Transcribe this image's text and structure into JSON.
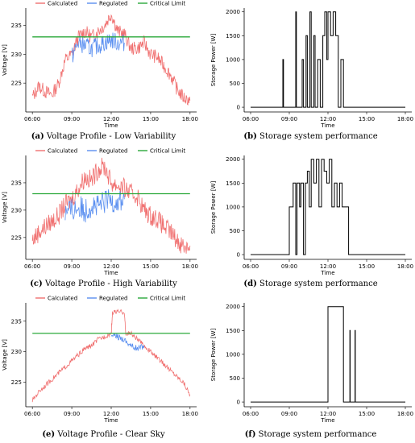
{
  "chart_data": [
    {
      "id": "a",
      "type": "line",
      "caption_letter": "(a)",
      "caption_text": "Voltage Profile - Low Variability",
      "xlabel": "Time",
      "ylabel": "Voltage [V]",
      "xlim": [
        5.5,
        18.5
      ],
      "ylim": [
        220,
        238
      ],
      "xticks": [
        6,
        9,
        12,
        15,
        18
      ],
      "xtick_labels": [
        "06:00",
        "09:00",
        "12:00",
        "15:00",
        "18:00"
      ],
      "yticks": [
        225,
        230,
        235
      ],
      "legend": "top",
      "critical_limit": 233,
      "colors": {
        "Calculated": "#f07070",
        "Regulated": "#5a8ff0",
        "Critical Limit": "#2aa83a"
      },
      "series": [
        {
          "name": "Calculated",
          "x": [
            6.0,
            6.5,
            7.0,
            7.5,
            8.0,
            8.5,
            9.0,
            9.5,
            10.0,
            10.5,
            11.0,
            11.5,
            12.0,
            12.5,
            13.0,
            13.5,
            14.0,
            14.5,
            15.0,
            15.5,
            16.0,
            16.5,
            17.0,
            17.5,
            18.0
          ],
          "y": [
            222.5,
            224.5,
            223.5,
            223,
            225,
            229,
            230,
            233,
            234,
            233,
            234,
            235,
            237,
            234,
            233.5,
            231,
            231,
            232,
            230,
            229.5,
            228,
            226.5,
            224,
            222.5,
            222
          ]
        },
        {
          "name": "Regulated",
          "x": [
            9.0,
            9.5,
            10.0,
            10.5,
            11.0,
            11.5,
            12.0,
            12.5,
            13.0
          ],
          "y": [
            229.5,
            232,
            231.5,
            231,
            231.5,
            232,
            232.5,
            232,
            232
          ]
        },
        {
          "name": "Critical Limit",
          "x": [
            6.0,
            18.0
          ],
          "y": [
            233,
            233
          ]
        }
      ]
    },
    {
      "id": "b",
      "type": "line",
      "caption_letter": "(b)",
      "caption_text": "Storage system performance",
      "xlabel": "Time",
      "ylabel": "Storage Power [W]",
      "xlim": [
        5.5,
        18.5
      ],
      "ylim": [
        -100,
        2080
      ],
      "xticks": [
        6,
        9,
        12,
        15,
        18
      ],
      "xtick_labels": [
        "06:00",
        "09:00",
        "12:00",
        "15:00",
        "18:00"
      ],
      "yticks": [
        0,
        500,
        1000,
        1500,
        2000
      ],
      "series": [
        {
          "name": "Storage",
          "x": [
            6.0,
            8.5,
            8.5,
            8.55,
            8.55,
            9.5,
            9.5,
            9.55,
            9.55,
            10.0,
            10.0,
            10.1,
            10.1,
            10.3,
            10.3,
            10.4,
            10.4,
            10.6,
            10.6,
            10.7,
            10.7,
            10.9,
            10.9,
            11.0,
            11.0,
            11.2,
            11.2,
            11.4,
            11.4,
            11.6,
            11.6,
            11.75,
            11.75,
            11.9,
            11.9,
            12.0,
            12.0,
            12.2,
            12.2,
            12.4,
            12.4,
            12.6,
            12.6,
            12.8,
            12.8,
            13.0,
            13.0,
            13.2,
            13.2,
            13.3,
            13.3,
            18.0
          ],
          "y": [
            0,
            0,
            1000,
            1000,
            0,
            0,
            2000,
            2000,
            0,
            0,
            1000,
            1000,
            0,
            0,
            1500,
            1500,
            0,
            0,
            2000,
            2000,
            0,
            0,
            1500,
            1500,
            0,
            0,
            1000,
            1000,
            0,
            0,
            1500,
            1500,
            2000,
            2000,
            1000,
            1000,
            2000,
            2000,
            1500,
            1500,
            2000,
            2000,
            1500,
            1500,
            0,
            0,
            1000,
            1000,
            0,
            0,
            0,
            0
          ]
        }
      ]
    },
    {
      "id": "c",
      "type": "line",
      "caption_letter": "(c)",
      "caption_text": "Voltage Profile - High Variability",
      "xlabel": "Time",
      "ylabel": "Voltage [V]",
      "xlim": [
        5.5,
        18.5
      ],
      "ylim": [
        221,
        240
      ],
      "xticks": [
        6,
        9,
        12,
        15,
        18
      ],
      "xtick_labels": [
        "06:00",
        "09:00",
        "12:00",
        "15:00",
        "18:00"
      ],
      "yticks": [
        225,
        230,
        235
      ],
      "legend": "top",
      "critical_limit": 233,
      "colors": {
        "Calculated": "#f07070",
        "Regulated": "#5a8ff0",
        "Critical Limit": "#2aa83a"
      },
      "series": [
        {
          "name": "Calculated",
          "x": [
            6.0,
            6.5,
            7.0,
            7.5,
            8.0,
            8.5,
            9.0,
            9.5,
            10.0,
            10.5,
            11.0,
            11.5,
            12.0,
            12.5,
            13.0,
            13.5,
            14.0,
            14.5,
            15.0,
            15.5,
            16.0,
            16.5,
            17.0,
            17.5,
            18.0
          ],
          "y": [
            224.5,
            226,
            227,
            228,
            229,
            231,
            232,
            234,
            236,
            235.5,
            237.5,
            238,
            235,
            234.5,
            234,
            233,
            232.5,
            230,
            229,
            228.5,
            227,
            226,
            224.5,
            223.5,
            223.5
          ]
        },
        {
          "name": "Regulated",
          "x": [
            8.5,
            9.0,
            9.5,
            10.0,
            10.5,
            11.0,
            11.5,
            12.0,
            12.5,
            13.0
          ],
          "y": [
            229.5,
            230,
            230.5,
            230,
            231,
            230.5,
            231.5,
            232,
            231.5,
            232
          ]
        },
        {
          "name": "Critical Limit",
          "x": [
            6.0,
            18.0
          ],
          "y": [
            233,
            233
          ]
        }
      ]
    },
    {
      "id": "d",
      "type": "line",
      "caption_letter": "(d)",
      "caption_text": "Storage system performance",
      "xlabel": "Time",
      "ylabel": "Storage Power [W]",
      "xlim": [
        5.5,
        18.5
      ],
      "ylim": [
        -100,
        2080
      ],
      "xticks": [
        6,
        9,
        12,
        15,
        18
      ],
      "xtick_labels": [
        "06:00",
        "09:00",
        "12:00",
        "15:00",
        "18:00"
      ],
      "yticks": [
        0,
        500,
        1000,
        1500,
        2000
      ],
      "series": [
        {
          "name": "Storage",
          "x": [
            6.0,
            9.0,
            9.0,
            9.3,
            9.3,
            9.5,
            9.5,
            9.6,
            9.6,
            9.8,
            9.8,
            9.9,
            9.9,
            10.1,
            10.1,
            10.25,
            10.25,
            10.4,
            10.4,
            10.55,
            10.55,
            10.7,
            10.7,
            10.9,
            10.9,
            11.1,
            11.1,
            11.3,
            11.3,
            11.5,
            11.5,
            11.7,
            11.7,
            11.9,
            11.9,
            12.1,
            12.1,
            12.3,
            12.3,
            12.5,
            12.5,
            12.7,
            12.7,
            12.9,
            12.9,
            13.1,
            13.1,
            13.3,
            13.3,
            13.6,
            13.6,
            18.0
          ],
          "y": [
            0,
            0,
            1000,
            1000,
            1500,
            1500,
            0,
            0,
            1500,
            1500,
            1000,
            1000,
            1500,
            1500,
            0,
            0,
            1500,
            1500,
            1750,
            1750,
            1000,
            1000,
            2000,
            2000,
            1500,
            1500,
            2000,
            2000,
            1000,
            1000,
            2000,
            2000,
            1750,
            1750,
            1500,
            1500,
            2000,
            2000,
            1000,
            1000,
            1500,
            1500,
            1000,
            1000,
            1500,
            1500,
            1000,
            1000,
            1000,
            1000,
            0,
            0
          ]
        }
      ]
    },
    {
      "id": "e",
      "type": "line",
      "caption_letter": "(e)",
      "caption_text": "Voltage Profile - Clear Sky",
      "xlabel": "Time",
      "ylabel": "Voltage [V]",
      "xlim": [
        5.5,
        18.5
      ],
      "ylim": [
        221,
        238
      ],
      "xticks": [
        6,
        9,
        12,
        15,
        18
      ],
      "xtick_labels": [
        "06:00",
        "09:00",
        "12:00",
        "15:00",
        "18:00"
      ],
      "yticks": [
        225,
        230,
        235
      ],
      "legend": "top",
      "critical_limit": 233,
      "colors": {
        "Calculated": "#f07070",
        "Regulated": "#5a8ff0",
        "Critical Limit": "#2aa83a"
      },
      "series": [
        {
          "name": "Calculated",
          "x": [
            6.0,
            6.5,
            7.0,
            7.5,
            8.0,
            8.5,
            9.0,
            9.5,
            10.0,
            10.5,
            11.0,
            11.5,
            12.0,
            12.1,
            12.5,
            13.0,
            13.1,
            13.5,
            14.0,
            14.5,
            15.0,
            15.5,
            16.0,
            16.5,
            17.0,
            17.5,
            18.0
          ],
          "y": [
            222,
            223.5,
            224.5,
            225.5,
            226.5,
            227.5,
            228.5,
            229.5,
            230.5,
            231,
            232,
            232.5,
            233,
            236.5,
            236.5,
            236.5,
            233,
            233,
            232,
            231,
            230,
            229,
            228,
            227,
            226,
            225,
            223
          ]
        },
        {
          "name": "Regulated",
          "x": [
            12.0,
            12.5,
            13.0,
            13.5,
            14.0,
            14.5
          ],
          "y": [
            232.5,
            232.5,
            232,
            231,
            230.5,
            231
          ]
        },
        {
          "name": "Critical Limit",
          "x": [
            6.0,
            18.0
          ],
          "y": [
            233,
            233
          ]
        }
      ]
    },
    {
      "id": "f",
      "type": "line",
      "caption_letter": "(f)",
      "caption_text": "Storage system performance",
      "xlabel": "Time",
      "ylabel": "Storage Power [W]",
      "xlim": [
        5.5,
        18.5
      ],
      "ylim": [
        -100,
        2080
      ],
      "xticks": [
        6,
        9,
        12,
        15,
        18
      ],
      "xtick_labels": [
        "06:00",
        "09:00",
        "12:00",
        "15:00",
        "18:00"
      ],
      "yticks": [
        0,
        500,
        1000,
        1500,
        2000
      ],
      "series": [
        {
          "name": "Storage",
          "x": [
            6.0,
            12.0,
            12.0,
            13.2,
            13.2,
            13.7,
            13.7,
            13.72,
            13.72,
            14.1,
            14.1,
            14.12,
            14.12,
            18.0
          ],
          "y": [
            0,
            0,
            2000,
            2000,
            0,
            0,
            1500,
            1500,
            0,
            0,
            1500,
            1500,
            0,
            0
          ]
        }
      ]
    }
  ]
}
